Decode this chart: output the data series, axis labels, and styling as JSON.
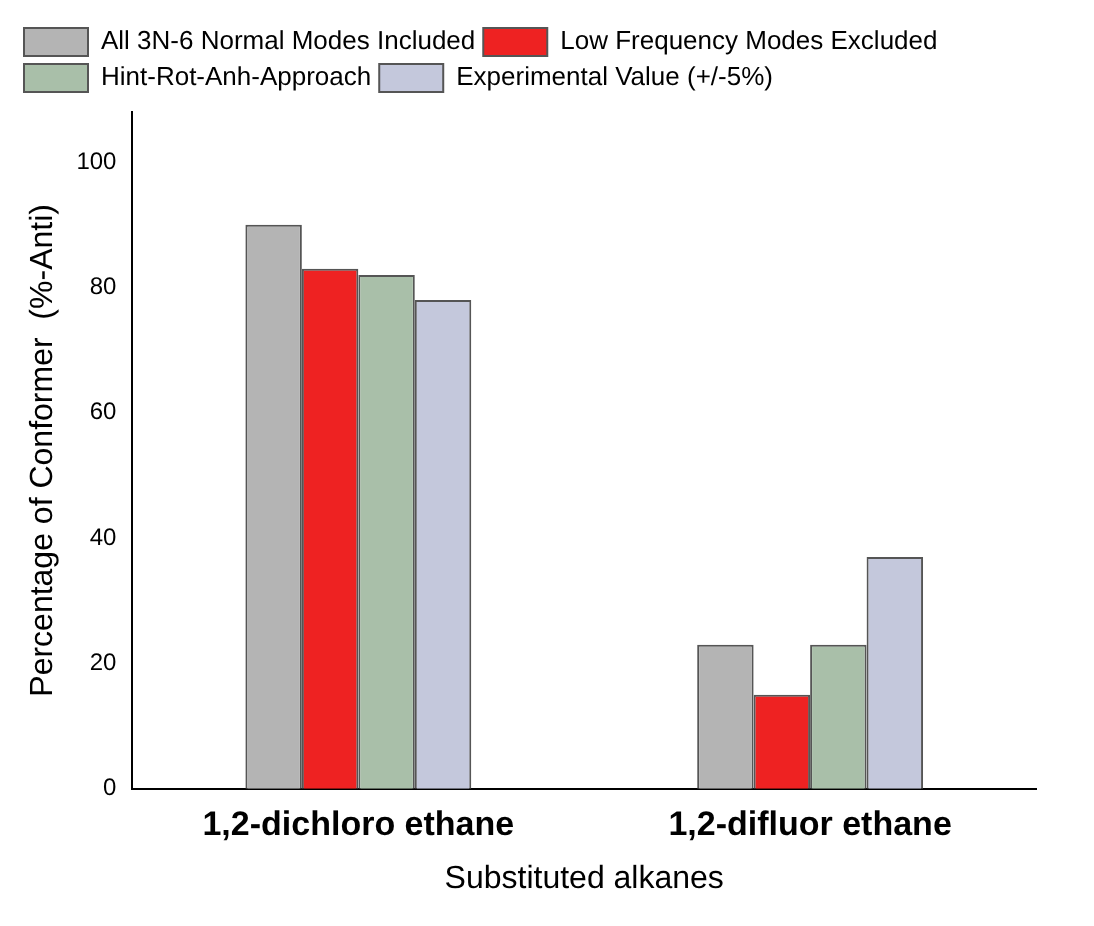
{
  "chart_data": {
    "type": "bar",
    "xlabel": "Substituted alkanes",
    "ylabel": "Percentage of Conformer  (%-Anti)",
    "categories": [
      "1,2-dichloro ethane",
      "1,2-difluor ethane"
    ],
    "series": [
      {
        "name": "All 3N-6 Normal Modes Included",
        "color": "#b4b4b4",
        "values": [
          90,
          23
        ]
      },
      {
        "name": "Low Frequency Modes Excluded",
        "color": "#ee2222",
        "values": [
          83,
          15
        ]
      },
      {
        "name": "Hint-Rot-Anh-Approach",
        "color": "#a9bfa9",
        "values": [
          82,
          23
        ]
      },
      {
        "name": "Experimental Value (+/-5%)",
        "color": "#c4c8dc",
        "values": [
          78,
          37
        ]
      }
    ],
    "ylim": [
      0,
      108
    ],
    "yticks": [
      0,
      20,
      40,
      60,
      80,
      100
    ],
    "grid": false,
    "legend": "top left"
  }
}
